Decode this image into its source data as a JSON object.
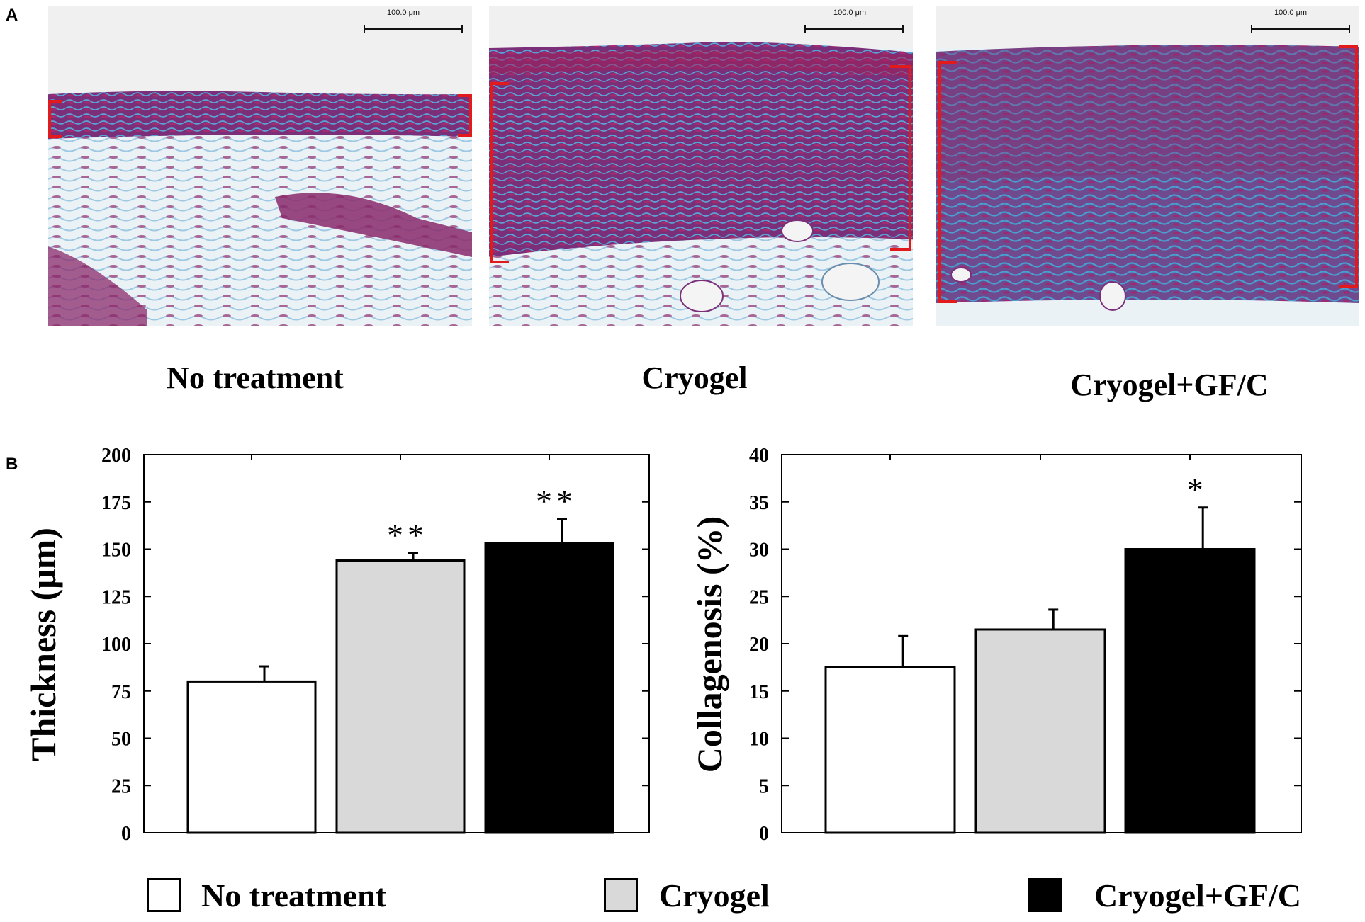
{
  "panels": {
    "a": "A",
    "b": "B"
  },
  "micrographs": [
    {
      "caption": "No treatment",
      "scale_bar": "100.0 μm",
      "layer": "thin"
    },
    {
      "caption": "Cryogel",
      "scale_bar": "100.0 μm",
      "layer": "medium"
    },
    {
      "caption": "Cryogel+GF/C",
      "scale_bar": "100.0 μm",
      "layer": "thick"
    }
  ],
  "colors": {
    "no_treatment": "#ffffff",
    "cryogel": "#d9d9d9",
    "cryogel_gfc": "#000000",
    "bracket": "#e31a1c",
    "stain_purple": "#8a2a6b",
    "stain_blue": "#4a9fd0"
  },
  "chart_data": [
    {
      "type": "bar",
      "categories": [
        "No treatment",
        "Cryogel",
        "Cryogel+GF/C"
      ],
      "values": [
        80,
        144,
        153
      ],
      "errors": [
        8,
        4,
        13
      ],
      "annotations": [
        "",
        "**",
        "**"
      ],
      "ylabel": "Thickness  (μm)",
      "ylim": [
        0,
        200
      ],
      "yticks": [
        "0",
        "25",
        "50",
        "75",
        "100",
        "125",
        "150",
        "175",
        "200"
      ],
      "grid": false
    },
    {
      "type": "bar",
      "categories": [
        "No treatment",
        "Cryogel",
        "Cryogel+GF/C"
      ],
      "values": [
        17.5,
        21.5,
        30
      ],
      "errors": [
        3.3,
        2.1,
        4.4
      ],
      "annotations": [
        "",
        "",
        "*"
      ],
      "ylabel": "Collagenosis  (%)",
      "ylim": [
        0,
        40
      ],
      "yticks": [
        "0",
        "5",
        "10",
        "15",
        "20",
        "25",
        "30",
        "35",
        "40"
      ],
      "grid": false
    }
  ],
  "legend": {
    "position": "bottom",
    "items": [
      {
        "label": "No treatment",
        "color": "#ffffff"
      },
      {
        "label": "Cryogel",
        "color": "#d9d9d9"
      },
      {
        "label": "Cryogel+GF/C",
        "color": "#000000"
      }
    ]
  }
}
